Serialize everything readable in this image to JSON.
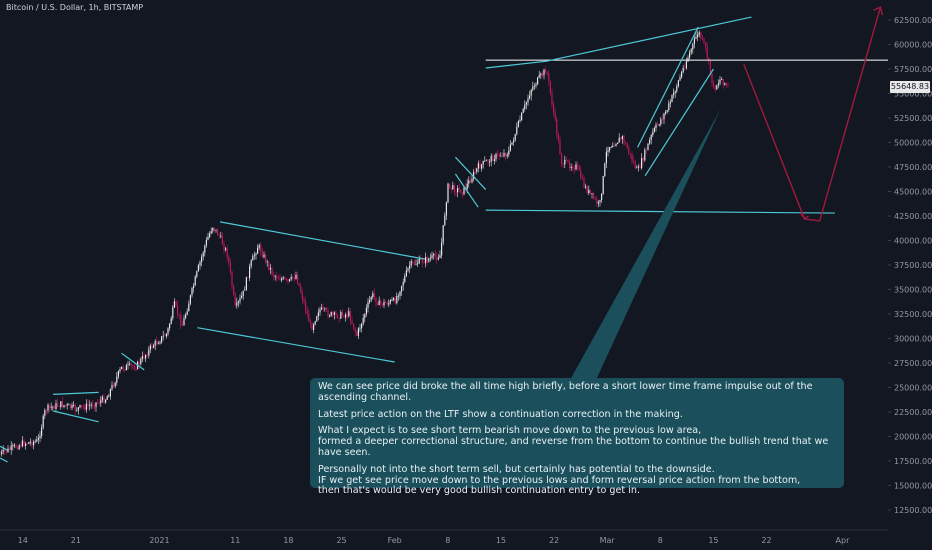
{
  "header": {
    "symbol_title": "Bitcoin / U.S. Dollar, 1h, BITSTAMP"
  },
  "current_price": "55648.83",
  "colors": {
    "background": "#131722",
    "candle": "#c2185b",
    "trendline": "#4dc9d6",
    "projection": "#a0183d",
    "horizontal": "#ffffff",
    "axis_text": "#9598a1",
    "note_bg": "#1b4f5c"
  },
  "note": {
    "paragraphs": [
      "We can see price did broke the all time high briefly, before a short lower time frame impulse out of the ascending channel.",
      "Latest price action on the LTF show a continuation correction in the making.",
      "What I expect is to see short term bearish move down to the previous low area,\nformed a deeper correctional structure, and reverse from the bottom to continue the bullish trend that we have seen.",
      "Personally not into the short term sell, but certainly has potential to the downside.\nIF we get see price move down to the previous lows and form reversal price action from the bottom,\nthen that's would be very good bullish continuation entry to get in."
    ]
  },
  "chart_data": {
    "type": "line",
    "title": "Bitcoin / U.S. Dollar, 1h, BITSTAMP",
    "xlabel": "",
    "ylabel": "",
    "x_tick_labels": [
      "14",
      "21",
      "2021",
      "11",
      "18",
      "25",
      "Feb",
      "8",
      "15",
      "22",
      "Mar",
      "8",
      "15",
      "22",
      "Apr"
    ],
    "y_tick_labels": [
      "12500.00",
      "15000.00",
      "17500.00",
      "20000.00",
      "22500.00",
      "25000.00",
      "27500.00",
      "30000.00",
      "32500.00",
      "35000.00",
      "37500.00",
      "40000.00",
      "42500.00",
      "45000.00",
      "47500.00",
      "50000.00",
      "52500.00",
      "55000.00",
      "57500.00",
      "60000.00",
      "62500.00"
    ],
    "y_ticks": [
      12500,
      15000,
      17500,
      20000,
      22500,
      25000,
      27500,
      30000,
      32500,
      35000,
      37500,
      40000,
      42500,
      45000,
      47500,
      50000,
      52500,
      55000,
      57500,
      60000,
      62500
    ],
    "ylim": [
      10000,
      65000
    ],
    "xlim": [
      "2020-12-11",
      "2021-04-07"
    ],
    "grid": false,
    "price_path": [
      [
        "2020-12-11",
        18200
      ],
      [
        "2020-12-14",
        19300
      ],
      [
        "2020-12-16",
        19500
      ],
      [
        "2020-12-17",
        22800
      ],
      [
        "2020-12-19",
        23300
      ],
      [
        "2020-12-21",
        22800
      ],
      [
        "2020-12-23",
        23200
      ],
      [
        "2020-12-25",
        23900
      ],
      [
        "2020-12-27",
        27000
      ],
      [
        "2020-12-29",
        27200
      ],
      [
        "2020-12-31",
        29200
      ],
      [
        "2021-01-02",
        30500
      ],
      [
        "2021-01-03",
        33500
      ],
      [
        "2021-01-04",
        31300
      ],
      [
        "2021-01-05",
        34000
      ],
      [
        "2021-01-06",
        36800
      ],
      [
        "2021-01-07",
        39500
      ],
      [
        "2021-01-08",
        41500
      ],
      [
        "2021-01-09",
        40300
      ],
      [
        "2021-01-10",
        38500
      ],
      [
        "2021-01-11",
        33000
      ],
      [
        "2021-01-12",
        34500
      ],
      [
        "2021-01-13",
        37500
      ],
      [
        "2021-01-14",
        39500
      ],
      [
        "2021-01-16",
        36500
      ],
      [
        "2021-01-18",
        35700
      ],
      [
        "2021-01-19",
        36500
      ],
      [
        "2021-01-21",
        31000
      ],
      [
        "2021-01-22",
        33000
      ],
      [
        "2021-01-24",
        32300
      ],
      [
        "2021-01-26",
        32500
      ],
      [
        "2021-01-27",
        30300
      ],
      [
        "2021-01-29",
        34500
      ],
      [
        "2021-01-30",
        33500
      ],
      [
        "2021-02-01",
        33800
      ],
      [
        "2021-02-03",
        37500
      ],
      [
        "2021-02-05",
        38000
      ],
      [
        "2021-02-07",
        38500
      ],
      [
        "2021-02-08",
        45500
      ],
      [
        "2021-02-10",
        45000
      ],
      [
        "2021-02-12",
        47500
      ],
      [
        "2021-02-14",
        48500
      ],
      [
        "2021-02-16",
        49000
      ],
      [
        "2021-02-19",
        55500
      ],
      [
        "2021-02-21",
        57500
      ],
      [
        "2021-02-23",
        48000
      ],
      [
        "2021-02-25",
        47500
      ],
      [
        "2021-02-26",
        45500
      ],
      [
        "2021-02-28",
        43500
      ],
      [
        "2021-03-01",
        49500
      ],
      [
        "2021-03-03",
        50500
      ],
      [
        "2021-03-05",
        47000
      ],
      [
        "2021-03-07",
        51000
      ],
      [
        "2021-03-09",
        53500
      ],
      [
        "2021-03-11",
        57500
      ],
      [
        "2021-03-13",
        61300
      ],
      [
        "2021-03-14",
        59500
      ],
      [
        "2021-03-15",
        55500
      ],
      [
        "2021-03-16",
        56500
      ],
      [
        "2021-03-17",
        55648.83
      ]
    ],
    "annotations": {
      "resistance_line": {
        "start": [
          "2021-02-13",
          58400
        ],
        "end": [
          "2021-04-07",
          58400
        ]
      },
      "support_line": {
        "start": [
          "2021-02-13",
          43100
        ],
        "end": [
          "2021-03-31",
          42800
        ]
      },
      "trendlines": [
        {
          "start": [
            "2020-12-11",
            19000
          ],
          "end": [
            "2020-12-12",
            18600
          ]
        },
        {
          "start": [
            "2020-12-11",
            17800
          ],
          "end": [
            "2020-12-12",
            17400
          ]
        },
        {
          "start": [
            "2020-12-18",
            24300
          ],
          "end": [
            "2020-12-24",
            24500
          ]
        },
        {
          "start": [
            "2020-12-18",
            22600
          ],
          "end": [
            "2020-12-24",
            21500
          ]
        },
        {
          "start": [
            "2020-12-27",
            28500
          ],
          "end": [
            "2020-12-30",
            26800
          ]
        },
        {
          "start": [
            "2021-01-09",
            41900
          ],
          "end": [
            "2021-02-05",
            38100
          ]
        },
        {
          "start": [
            "2021-01-06",
            31100
          ],
          "end": [
            "2021-02-01",
            27600
          ]
        },
        {
          "start": [
            "2021-02-09",
            48500
          ],
          "end": [
            "2021-02-13",
            45200
          ]
        },
        {
          "start": [
            "2021-02-09",
            46800
          ],
          "end": [
            "2021-02-12",
            43400
          ]
        },
        {
          "start": [
            "2021-02-13",
            57600
          ],
          "end": [
            "2021-02-21",
            58300
          ]
        },
        {
          "start": [
            "2021-02-21",
            58300
          ],
          "end": [
            "2021-03-20",
            62800
          ]
        },
        {
          "start": [
            "2021-03-05",
            49500
          ],
          "end": [
            "2021-03-13",
            61800
          ]
        },
        {
          "start": [
            "2021-03-06",
            46600
          ],
          "end": [
            "2021-03-15",
            57500
          ]
        }
      ],
      "projection_path": [
        [
          "2021-03-19",
          58000
        ],
        [
          "2021-03-27",
          42200
        ],
        [
          "2021-03-29",
          42000
        ],
        [
          "2021-04-06",
          63800
        ]
      ],
      "callout_pointer": {
        "tip": [
          "2021-03-16",
          53500
        ]
      }
    }
  }
}
